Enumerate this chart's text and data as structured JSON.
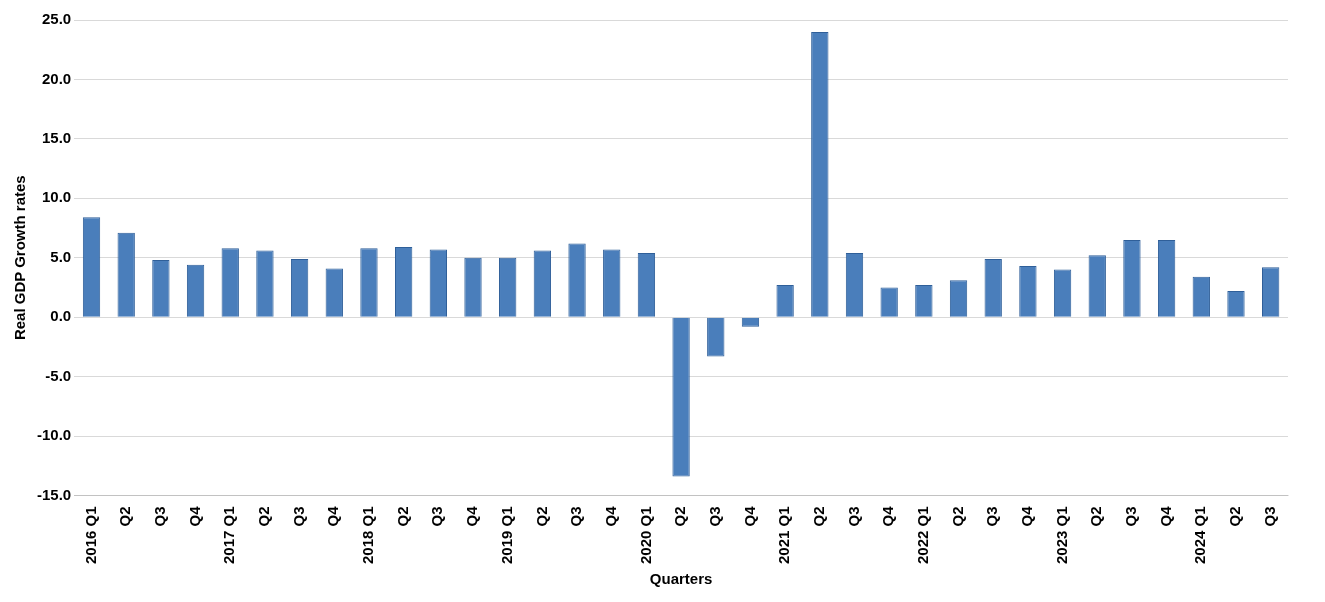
{
  "chart_data": {
    "type": "bar",
    "xlabel": "Quarters",
    "ylabel": "Real GDP Growth rates",
    "categories": [
      "2016 Q1",
      "Q2",
      "Q3",
      "Q4",
      "2017 Q1",
      "Q2",
      "Q3",
      "Q4",
      "2018 Q1",
      "Q2",
      "Q3",
      "Q4",
      "2019 Q1",
      "Q2",
      "Q3",
      "Q4",
      "2020 Q1",
      "Q2",
      "Q3",
      "Q4",
      "2021 Q1",
      "Q2",
      "Q3",
      "Q4",
      "2022 Q1",
      "Q2",
      "Q3",
      "Q4",
      "2023 Q1",
      "Q2",
      "Q3",
      "Q4",
      "2024 Q1",
      "Q2",
      "Q3"
    ],
    "values": [
      8.4,
      7.1,
      4.8,
      4.4,
      5.8,
      5.6,
      4.9,
      4.1,
      5.8,
      5.9,
      5.7,
      5.0,
      5.0,
      5.6,
      6.2,
      5.7,
      5.4,
      -13.4,
      -3.3,
      -0.8,
      2.7,
      24.0,
      5.4,
      2.5,
      2.7,
      3.1,
      4.9,
      4.3,
      4.0,
      5.2,
      6.5,
      6.5,
      3.4,
      2.2,
      4.2
    ],
    "color": "#4a7ebb",
    "ylim": [
      -15,
      25
    ],
    "yticks": [
      {
        "value": -15,
        "label": "-15.0"
      },
      {
        "value": -10,
        "label": "-10.0"
      },
      {
        "value": -5,
        "label": "-5.0"
      },
      {
        "value": 0,
        "label": "0.0"
      },
      {
        "value": 5,
        "label": "5.0"
      },
      {
        "value": 10,
        "label": "10.0"
      },
      {
        "value": 15,
        "label": "15.0"
      },
      {
        "value": 20,
        "label": "20.0"
      },
      {
        "value": 25,
        "label": "25.0"
      }
    ],
    "grid": "y",
    "legend": false
  }
}
